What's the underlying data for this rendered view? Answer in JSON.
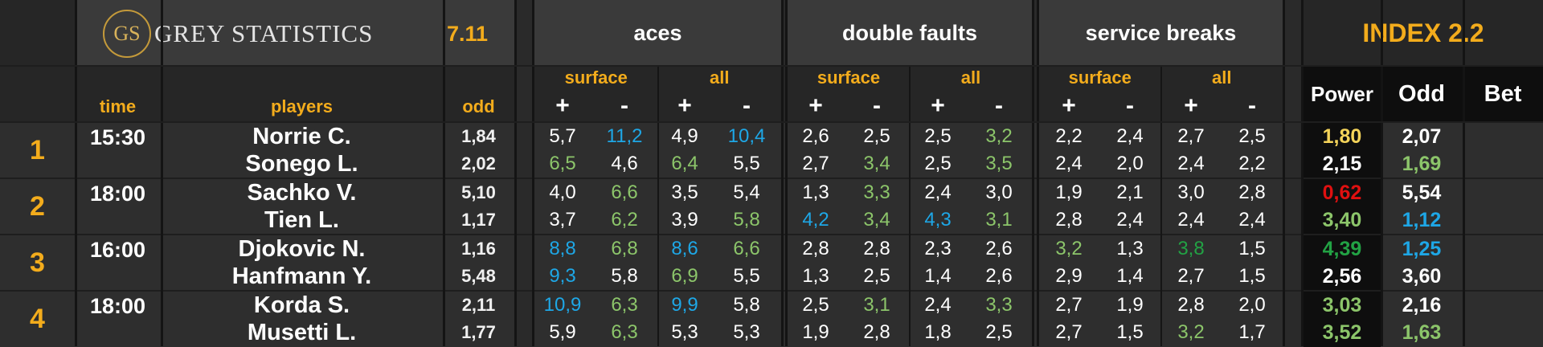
{
  "brand": {
    "logo_initials": "GS",
    "name": "GREY STATISTICS",
    "version": "7.11"
  },
  "groups": {
    "aces": "aces",
    "double_faults": "double faults",
    "service_breaks": "service breaks"
  },
  "index": {
    "title": "INDEX 2.2",
    "power": "Power",
    "odd": "Odd",
    "bet": "Bet"
  },
  "columns": {
    "time": "time",
    "players": "players",
    "odd": "odd",
    "surface": "surface",
    "all": "all",
    "plus": "+",
    "minus": "-"
  },
  "colors": {
    "orange": "#f3ac1c",
    "green": "#8cc56a",
    "blue": "#1ea7e6",
    "red": "#e01010",
    "dark_green": "#22a244",
    "white": "#ffffff",
    "yellow": "#f5d45a"
  },
  "matches": [
    {
      "num": "1",
      "time": "15:30",
      "players": [
        {
          "name": "Norrie C.",
          "odd": "1,84",
          "stats": [
            {
              "v": "5,7",
              "c": "white"
            },
            {
              "v": "11,2",
              "c": "blue"
            },
            {
              "v": "4,9",
              "c": "white"
            },
            {
              "v": "10,4",
              "c": "blue"
            },
            {
              "v": "2,6",
              "c": "white"
            },
            {
              "v": "2,5",
              "c": "white"
            },
            {
              "v": "2,5",
              "c": "white"
            },
            {
              "v": "3,2",
              "c": "green"
            },
            {
              "v": "2,2",
              "c": "white"
            },
            {
              "v": "2,4",
              "c": "white"
            },
            {
              "v": "2,7",
              "c": "white"
            },
            {
              "v": "2,5",
              "c": "white"
            }
          ],
          "power": {
            "v": "1,80",
            "c": "yellow"
          },
          "index_odd": {
            "v": "2,07",
            "c": "white"
          }
        },
        {
          "name": "Sonego L.",
          "odd": "2,02",
          "stats": [
            {
              "v": "6,5",
              "c": "green"
            },
            {
              "v": "4,6",
              "c": "white"
            },
            {
              "v": "6,4",
              "c": "green"
            },
            {
              "v": "5,5",
              "c": "white"
            },
            {
              "v": "2,7",
              "c": "white"
            },
            {
              "v": "3,4",
              "c": "green"
            },
            {
              "v": "2,5",
              "c": "white"
            },
            {
              "v": "3,5",
              "c": "green"
            },
            {
              "v": "2,4",
              "c": "white"
            },
            {
              "v": "2,0",
              "c": "white"
            },
            {
              "v": "2,4",
              "c": "white"
            },
            {
              "v": "2,2",
              "c": "white"
            }
          ],
          "power": {
            "v": "2,15",
            "c": "white"
          },
          "index_odd": {
            "v": "1,69",
            "c": "green"
          }
        }
      ]
    },
    {
      "num": "2",
      "time": "18:00",
      "players": [
        {
          "name": "Sachko V.",
          "odd": "5,10",
          "stats": [
            {
              "v": "4,0",
              "c": "white"
            },
            {
              "v": "6,6",
              "c": "green"
            },
            {
              "v": "3,5",
              "c": "white"
            },
            {
              "v": "5,4",
              "c": "white"
            },
            {
              "v": "1,3",
              "c": "white"
            },
            {
              "v": "3,3",
              "c": "green"
            },
            {
              "v": "2,4",
              "c": "white"
            },
            {
              "v": "3,0",
              "c": "white"
            },
            {
              "v": "1,9",
              "c": "white"
            },
            {
              "v": "2,1",
              "c": "white"
            },
            {
              "v": "3,0",
              "c": "white"
            },
            {
              "v": "2,8",
              "c": "white"
            }
          ],
          "power": {
            "v": "0,62",
            "c": "red"
          },
          "index_odd": {
            "v": "5,54",
            "c": "white"
          }
        },
        {
          "name": "Tien L.",
          "odd": "1,17",
          "stats": [
            {
              "v": "3,7",
              "c": "white"
            },
            {
              "v": "6,2",
              "c": "green"
            },
            {
              "v": "3,9",
              "c": "white"
            },
            {
              "v": "5,8",
              "c": "green"
            },
            {
              "v": "4,2",
              "c": "blue"
            },
            {
              "v": "3,4",
              "c": "green"
            },
            {
              "v": "4,3",
              "c": "blue"
            },
            {
              "v": "3,1",
              "c": "green"
            },
            {
              "v": "2,8",
              "c": "white"
            },
            {
              "v": "2,4",
              "c": "white"
            },
            {
              "v": "2,4",
              "c": "white"
            },
            {
              "v": "2,4",
              "c": "white"
            }
          ],
          "power": {
            "v": "3,40",
            "c": "green"
          },
          "index_odd": {
            "v": "1,12",
            "c": "blue"
          }
        }
      ]
    },
    {
      "num": "3",
      "time": "16:00",
      "players": [
        {
          "name": "Djokovic N.",
          "odd": "1,16",
          "stats": [
            {
              "v": "8,8",
              "c": "blue"
            },
            {
              "v": "6,8",
              "c": "green"
            },
            {
              "v": "8,6",
              "c": "blue"
            },
            {
              "v": "6,6",
              "c": "green"
            },
            {
              "v": "2,8",
              "c": "white"
            },
            {
              "v": "2,8",
              "c": "white"
            },
            {
              "v": "2,3",
              "c": "white"
            },
            {
              "v": "2,6",
              "c": "white"
            },
            {
              "v": "3,2",
              "c": "green"
            },
            {
              "v": "1,3",
              "c": "white"
            },
            {
              "v": "3,8",
              "c": "dark_green"
            },
            {
              "v": "1,5",
              "c": "white"
            }
          ],
          "power": {
            "v": "4,39",
            "c": "dark_green"
          },
          "index_odd": {
            "v": "1,25",
            "c": "blue"
          }
        },
        {
          "name": "Hanfmann Y.",
          "odd": "5,48",
          "stats": [
            {
              "v": "9,3",
              "c": "blue"
            },
            {
              "v": "5,8",
              "c": "white"
            },
            {
              "v": "6,9",
              "c": "green"
            },
            {
              "v": "5,5",
              "c": "white"
            },
            {
              "v": "1,3",
              "c": "white"
            },
            {
              "v": "2,5",
              "c": "white"
            },
            {
              "v": "1,4",
              "c": "white"
            },
            {
              "v": "2,6",
              "c": "white"
            },
            {
              "v": "2,9",
              "c": "white"
            },
            {
              "v": "1,4",
              "c": "white"
            },
            {
              "v": "2,7",
              "c": "white"
            },
            {
              "v": "1,5",
              "c": "white"
            }
          ],
          "power": {
            "v": "2,56",
            "c": "white"
          },
          "index_odd": {
            "v": "3,60",
            "c": "white"
          }
        }
      ]
    },
    {
      "num": "4",
      "time": "18:00",
      "players": [
        {
          "name": "Korda S.",
          "odd": "2,11",
          "stats": [
            {
              "v": "10,9",
              "c": "blue"
            },
            {
              "v": "6,3",
              "c": "green"
            },
            {
              "v": "9,9",
              "c": "blue"
            },
            {
              "v": "5,8",
              "c": "white"
            },
            {
              "v": "2,5",
              "c": "white"
            },
            {
              "v": "3,1",
              "c": "green"
            },
            {
              "v": "2,4",
              "c": "white"
            },
            {
              "v": "3,3",
              "c": "green"
            },
            {
              "v": "2,7",
              "c": "white"
            },
            {
              "v": "1,9",
              "c": "white"
            },
            {
              "v": "2,8",
              "c": "white"
            },
            {
              "v": "2,0",
              "c": "white"
            }
          ],
          "power": {
            "v": "3,03",
            "c": "green"
          },
          "index_odd": {
            "v": "2,16",
            "c": "white"
          }
        },
        {
          "name": "Musetti L.",
          "odd": "1,77",
          "stats": [
            {
              "v": "5,9",
              "c": "white"
            },
            {
              "v": "6,3",
              "c": "green"
            },
            {
              "v": "5,3",
              "c": "white"
            },
            {
              "v": "5,3",
              "c": "white"
            },
            {
              "v": "1,9",
              "c": "white"
            },
            {
              "v": "2,8",
              "c": "white"
            },
            {
              "v": "1,8",
              "c": "white"
            },
            {
              "v": "2,5",
              "c": "white"
            },
            {
              "v": "2,7",
              "c": "white"
            },
            {
              "v": "1,5",
              "c": "white"
            },
            {
              "v": "3,2",
              "c": "green"
            },
            {
              "v": "1,7",
              "c": "white"
            }
          ],
          "power": {
            "v": "3,52",
            "c": "green"
          },
          "index_odd": {
            "v": "1,63",
            "c": "green"
          }
        }
      ]
    }
  ]
}
